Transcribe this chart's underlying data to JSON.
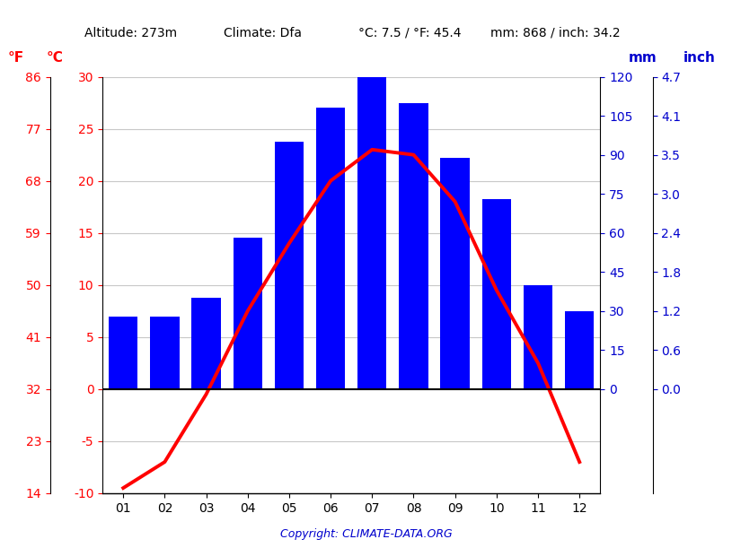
{
  "months": [
    "01",
    "02",
    "03",
    "04",
    "05",
    "06",
    "07",
    "08",
    "09",
    "10",
    "11",
    "12"
  ],
  "temperature_c": [
    -9.5,
    -7.0,
    -0.5,
    7.5,
    14.0,
    20.0,
    23.0,
    22.5,
    18.0,
    9.5,
    2.5,
    -7.0
  ],
  "precipitation_mm": [
    28,
    28,
    35,
    58,
    95,
    108,
    120,
    110,
    89,
    73,
    40,
    30
  ],
  "temp_c_ticks": [
    -10,
    -5,
    0,
    5,
    10,
    15,
    20,
    25,
    30
  ],
  "temp_f_ticks": [
    14,
    23,
    32,
    41,
    50,
    59,
    68,
    77,
    86
  ],
  "precip_mm_ticks": [
    0,
    15,
    30,
    45,
    60,
    75,
    90,
    105,
    120
  ],
  "precip_inch_ticks": [
    "0.0",
    "0.6",
    "1.2",
    "1.8",
    "2.4",
    "3.0",
    "3.5",
    "4.1",
    "4.7"
  ],
  "bar_color": "#0000ff",
  "line_color": "#ff0000",
  "background_color": "#ffffff",
  "grid_color": "#c8c8c8",
  "header_color_black": "#000000",
  "header_color_red": "#ff0000",
  "header_color_blue": "#0000cd"
}
